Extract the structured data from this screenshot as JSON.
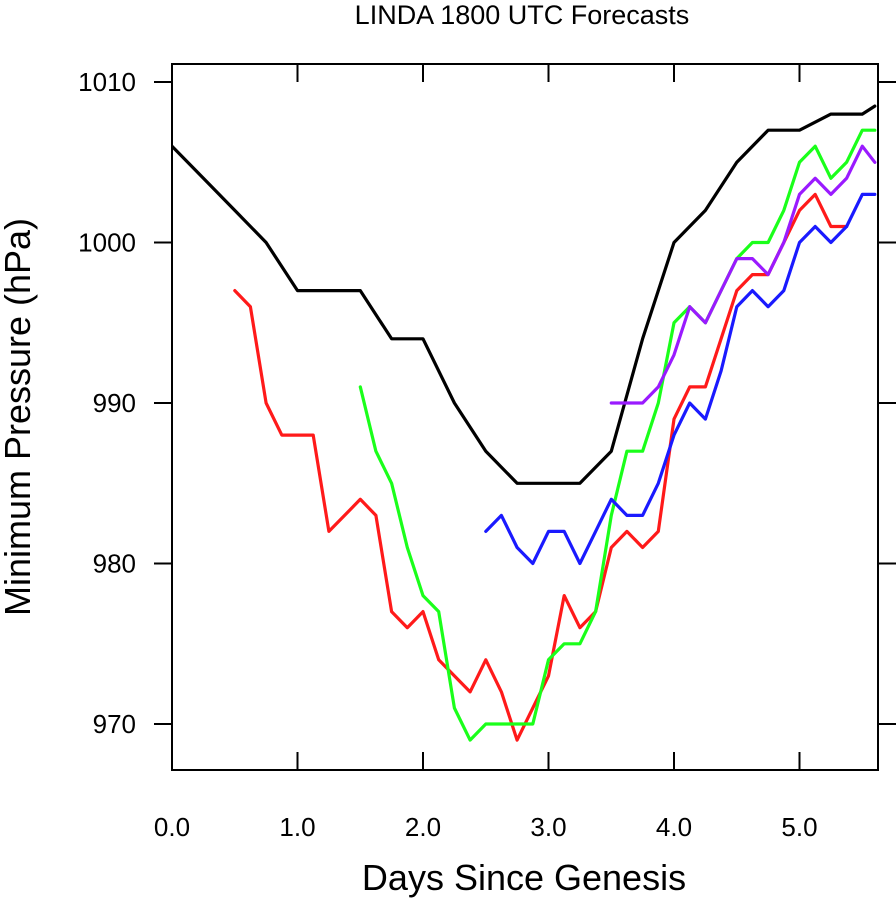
{
  "chart_data": {
    "type": "line",
    "title": "LINDA 1800 UTC Forecasts",
    "xlabel": "Days Since Genesis",
    "ylabel": "Minimum Pressure (hPa)",
    "xlim": [
      0,
      5.6
    ],
    "ylim": [
      967,
      1011
    ],
    "x_ticks": [
      "0.0",
      "1.0",
      "2.0",
      "3.0",
      "4.0",
      "5.0"
    ],
    "y_ticks": [
      "970",
      "980",
      "990",
      "1000",
      "1010"
    ],
    "grid": false,
    "legend": "none",
    "series": [
      {
        "color": "#000000",
        "x": [
          0,
          0.25,
          0.5,
          0.75,
          1.0,
          1.25,
          1.5,
          1.75,
          2.0,
          2.25,
          2.5,
          2.75,
          3.0,
          3.25,
          3.5,
          3.75,
          4.0,
          4.25,
          4.5,
          4.75,
          5.0,
          5.25,
          5.5,
          5.6
        ],
        "y": [
          1006,
          1004,
          1002,
          1000,
          997,
          997,
          997,
          994,
          994,
          990,
          987,
          985,
          985,
          985,
          987,
          994,
          1000,
          1002,
          1005,
          1007,
          1007,
          1008,
          1008,
          1008.5
        ]
      },
      {
        "color": "#ff1a1a",
        "x": [
          0.5,
          0.625,
          0.75,
          0.875,
          1.0,
          1.125,
          1.25,
          1.375,
          1.5,
          1.625,
          1.75,
          1.875,
          2.0,
          2.125,
          2.25,
          2.375,
          2.5,
          2.625,
          2.75,
          2.875,
          3.0,
          3.125,
          3.25,
          3.375,
          3.5,
          3.625,
          3.75,
          3.875,
          4.0,
          4.125,
          4.25,
          4.375,
          4.5,
          4.625,
          4.75,
          4.875,
          5.0,
          5.125,
          5.25,
          5.375
        ],
        "y": [
          997,
          996,
          990,
          988,
          988,
          988,
          982,
          983,
          984,
          983,
          977,
          976,
          977,
          974,
          973,
          972,
          974,
          972,
          969,
          971,
          973,
          978,
          976,
          977,
          981,
          982,
          981,
          982,
          989,
          991,
          991,
          994,
          997,
          998,
          998,
          1000,
          1002,
          1003,
          1001,
          1001
        ]
      },
      {
        "color": "#1aff1a",
        "x": [
          1.5,
          1.625,
          1.75,
          1.875,
          2.0,
          2.125,
          2.25,
          2.375,
          2.5,
          2.625,
          2.75,
          2.875,
          3.0,
          3.125,
          3.25,
          3.375,
          3.5,
          3.625,
          3.75,
          3.875,
          4.0,
          4.125,
          4.25,
          4.375,
          4.5,
          4.625,
          4.75,
          4.875,
          5.0,
          5.125,
          5.25,
          5.375,
          5.5,
          5.6
        ],
        "y": [
          991,
          987,
          985,
          981,
          978,
          977,
          971,
          969,
          970,
          970,
          970,
          970,
          974,
          975,
          975,
          977,
          983,
          987,
          987,
          990,
          995,
          996,
          995,
          997,
          999,
          1000,
          1000,
          1002,
          1005,
          1006,
          1004,
          1005,
          1007,
          1007
        ]
      },
      {
        "color": "#1a1aff",
        "x": [
          2.5,
          2.625,
          2.75,
          2.875,
          3.0,
          3.125,
          3.25,
          3.375,
          3.5,
          3.625,
          3.75,
          3.875,
          4.0,
          4.125,
          4.25,
          4.375,
          4.5,
          4.625,
          4.75,
          4.875,
          5.0,
          5.125,
          5.25,
          5.375,
          5.5,
          5.6
        ],
        "y": [
          982,
          983,
          981,
          980,
          982,
          982,
          980,
          982,
          984,
          983,
          983,
          985,
          988,
          990,
          989,
          992,
          996,
          997,
          996,
          997,
          1000,
          1001,
          1000,
          1001,
          1003,
          1003
        ]
      },
      {
        "color": "#9a1aff",
        "x": [
          3.5,
          3.625,
          3.75,
          3.875,
          4.0,
          4.125,
          4.25,
          4.375,
          4.5,
          4.625,
          4.75,
          4.875,
          5.0,
          5.125,
          5.25,
          5.375,
          5.5,
          5.6
        ],
        "y": [
          990,
          990,
          990,
          991,
          993,
          996,
          995,
          997,
          999,
          999,
          998,
          1000,
          1003,
          1004,
          1003,
          1004,
          1006,
          1005
        ]
      }
    ]
  }
}
